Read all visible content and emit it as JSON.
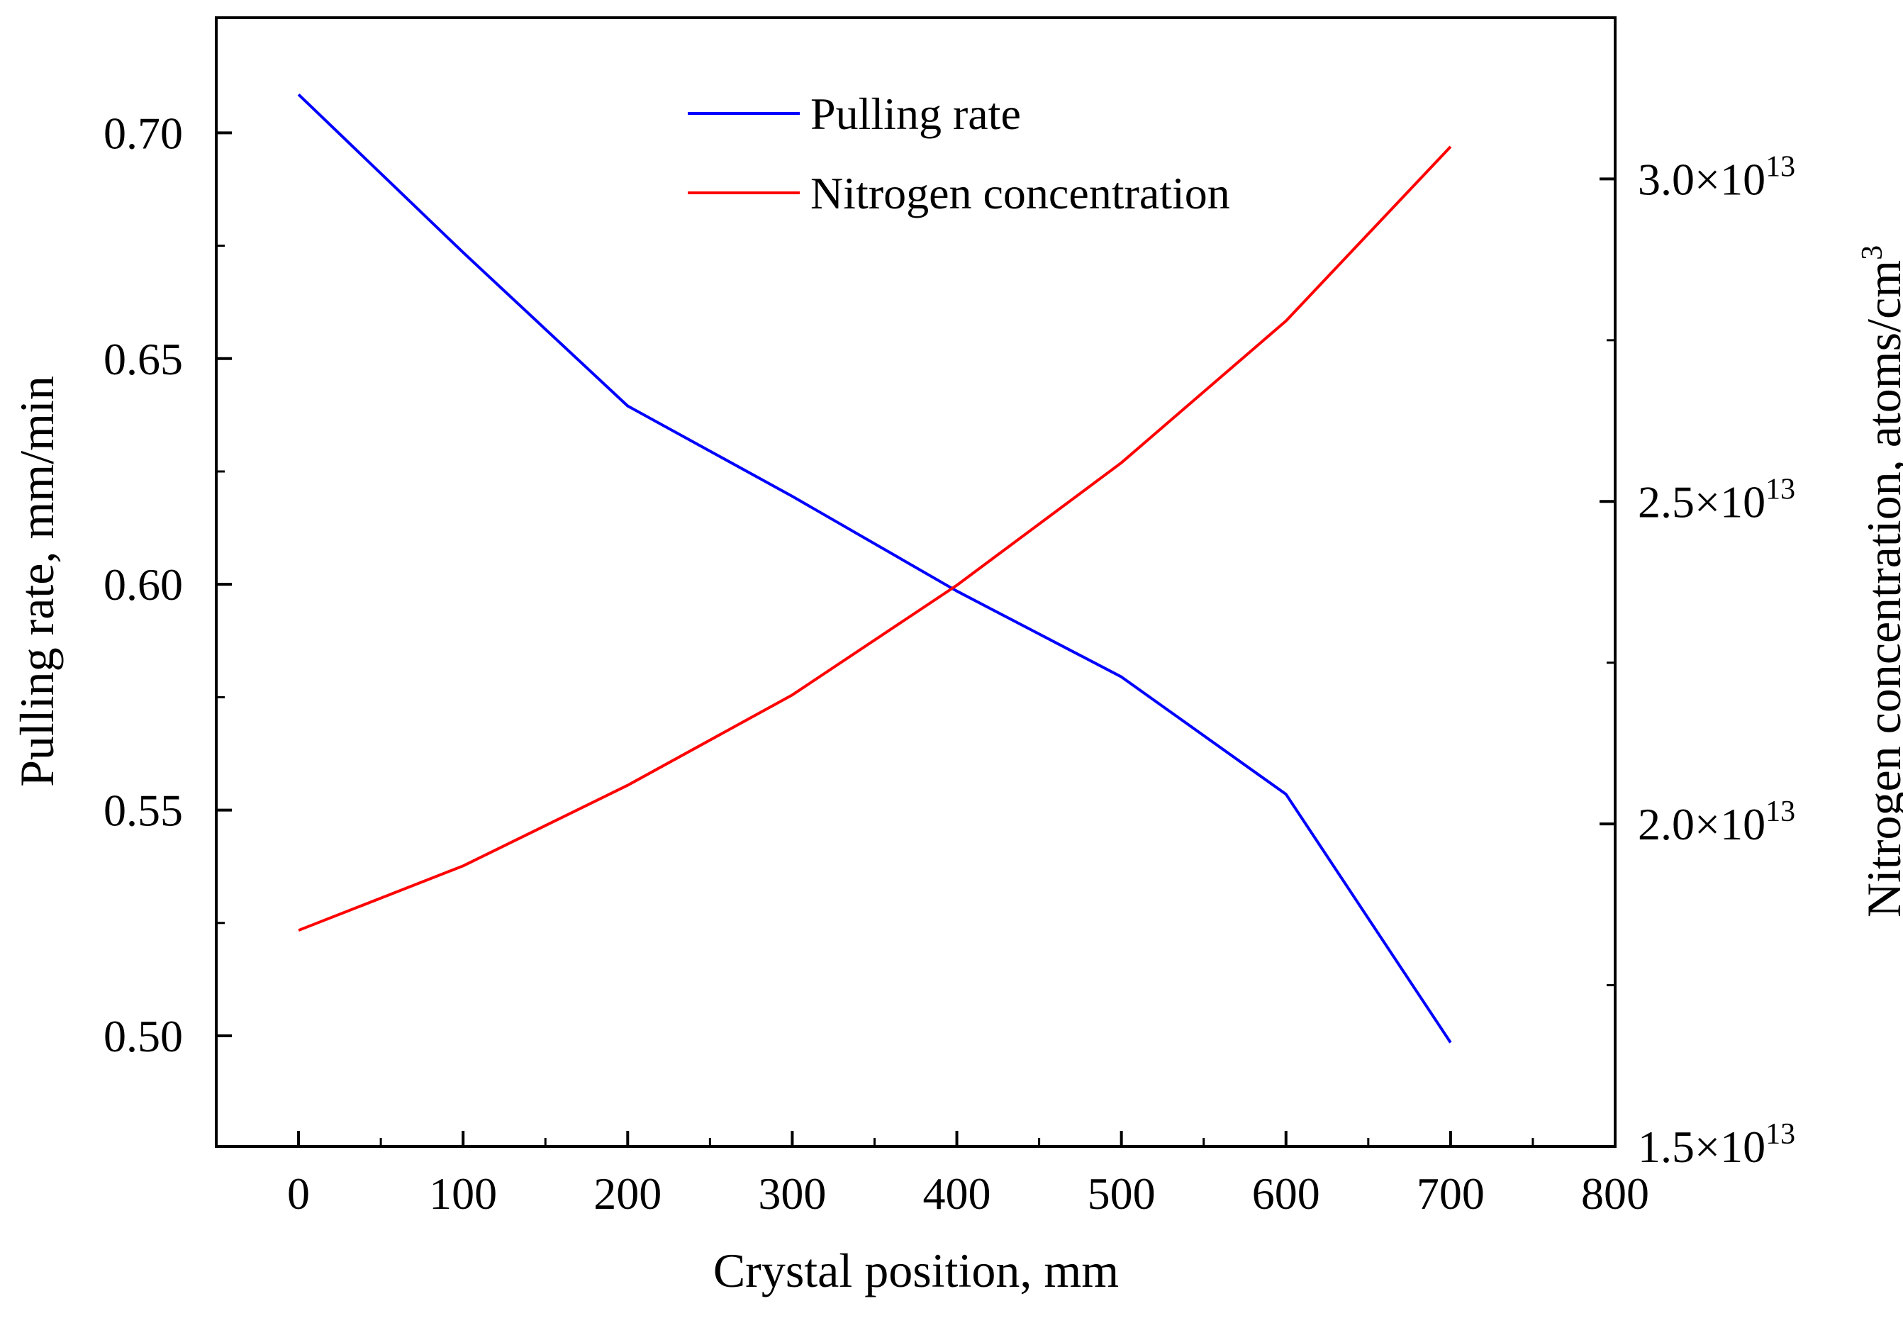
{
  "chart_data": {
    "type": "line",
    "x": [
      0,
      100,
      200,
      300,
      400,
      500,
      600,
      700
    ],
    "series": [
      {
        "name": "Pulling rate",
        "axis": "left",
        "color": "#0000ff",
        "values": [
          0.7085,
          0.6735,
          0.6395,
          0.6195,
          0.5985,
          0.5795,
          0.5535,
          0.4985
        ]
      },
      {
        "name": "Nitrogen concentration",
        "axis": "right",
        "color": "#ff0000",
        "values": [
          18350000000000.0,
          19350000000000.0,
          20600000000000.0,
          22000000000000.0,
          23700000000000.0,
          25600000000000.0,
          27800000000000.0,
          30500000000000.0
        ]
      }
    ],
    "xlabel": "Crystal position, mm",
    "ylabel": "Pulling rate, mm/min",
    "ylabel_right": {
      "text": "Nitrogen concentration, atoms/cm",
      "superscript": "3"
    },
    "xlim": [
      -50,
      800
    ],
    "ylim": [
      0.4755,
      0.7255
    ],
    "ylim_right": [
      15000000000000.0,
      32500000000000.0
    ],
    "xticks": [
      {
        "value": 0,
        "label": "0"
      },
      {
        "value": 100,
        "label": "100"
      },
      {
        "value": 200,
        "label": "200"
      },
      {
        "value": 300,
        "label": "300"
      },
      {
        "value": 400,
        "label": "400"
      },
      {
        "value": 500,
        "label": "500"
      },
      {
        "value": 600,
        "label": "600"
      },
      {
        "value": 700,
        "label": "700"
      },
      {
        "value": 800,
        "label": "800"
      }
    ],
    "yticks": [
      {
        "value": 0.5,
        "label": "0.50"
      },
      {
        "value": 0.55,
        "label": "0.55"
      },
      {
        "value": 0.6,
        "label": "0.60"
      },
      {
        "value": 0.65,
        "label": "0.65"
      },
      {
        "value": 0.7,
        "label": "0.70"
      }
    ],
    "yticks_right": [
      {
        "value": 15000000000000.0,
        "mantissa": "1.5×10",
        "exponent": "13"
      },
      {
        "value": 20000000000000.0,
        "mantissa": "2.0×10",
        "exponent": "13"
      },
      {
        "value": 25000000000000.0,
        "mantissa": "2.5×10",
        "exponent": "13"
      },
      {
        "value": 30000000000000.0,
        "mantissa": "3.0×10",
        "exponent": "13"
      }
    ],
    "legend": {
      "position": "top-center",
      "entries": [
        "Pulling rate",
        "Nitrogen concentration"
      ]
    },
    "grid": false
  }
}
